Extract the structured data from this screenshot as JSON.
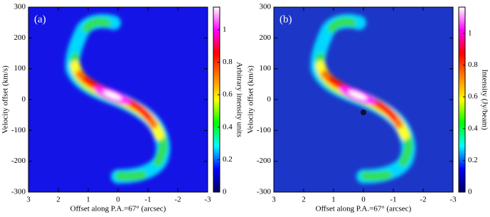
{
  "chart_data": [
    {
      "type": "heatmap",
      "panel_label": "(a)",
      "xlabel": "Offset along P.A.=67°   (arcsec)",
      "ylabel": "Velocity offset (km/s)",
      "xlim": [
        3,
        -3
      ],
      "xticks": [
        3,
        2,
        1,
        0,
        -1,
        -2,
        -3
      ],
      "ylim": [
        -300,
        300
      ],
      "yticks": [
        -300,
        -200,
        -100,
        0,
        100,
        200,
        300
      ],
      "colorbar_label": "Arbitrary intensity units",
      "clim": [
        0,
        1.14
      ],
      "cticks": [
        0,
        0.2,
        0.4,
        0.6,
        0.8,
        1
      ],
      "background": "#1414e6",
      "colormap": [
        "#000060",
        "#0000ff",
        "#00ffff",
        "#00ff00",
        "#ffff00",
        "#ff8000",
        "#ff0000",
        "#ff00ff",
        "#ffffff"
      ]
    },
    {
      "type": "heatmap",
      "panel_label": "(b)",
      "xlabel": "Offset along P.A.=67°   (arcsec)",
      "ylabel": "Velocity offset (km/s)",
      "xlim": [
        3,
        -3
      ],
      "xticks": [
        3,
        2,
        1,
        0,
        -1,
        -2,
        -3
      ],
      "ylim": [
        -300,
        300
      ],
      "yticks": [
        -300,
        -200,
        -100,
        0,
        100,
        200,
        300
      ],
      "colorbar_label": "Intensity (Jy/beam)",
      "clim": [
        0,
        1.165
      ],
      "cticks": [
        0,
        0.2,
        0.4,
        0.6,
        0.8,
        1
      ],
      "background": "#1c36c8",
      "colormap": [
        "#000060",
        "#0000ff",
        "#00ffff",
        "#00ff00",
        "#ffff00",
        "#ff8000",
        "#ff0000",
        "#ff00ff",
        "#ffffff"
      ]
    }
  ]
}
